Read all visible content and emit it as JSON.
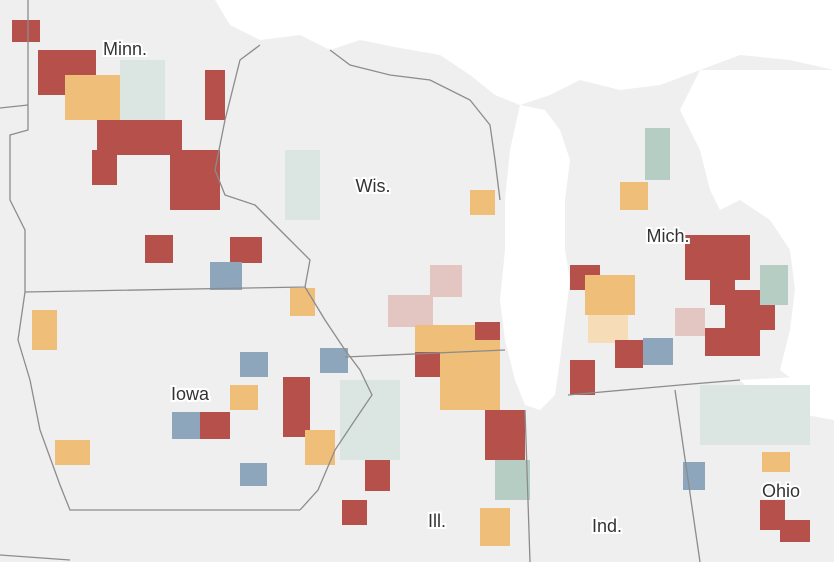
{
  "state_labels": [
    "Minn.",
    "Wis.",
    "Mich.",
    "Iowa",
    "Ill.",
    "Ind.",
    "Ohio"
  ]
}
